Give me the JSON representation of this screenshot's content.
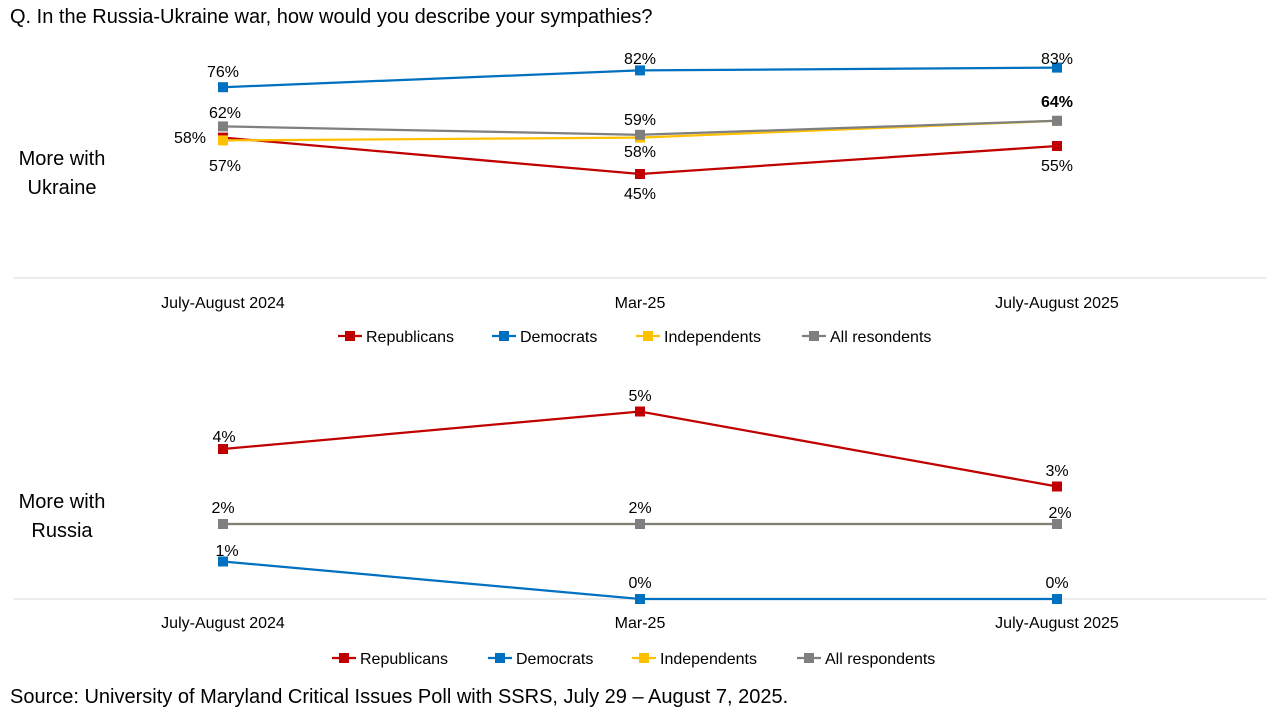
{
  "title": "Q. In the Russia-Ukraine war, how would you describe your sympathies?",
  "source": "Source: University of Maryland Critical Issues Poll with SSRS, July 29 – August 7, 2025.",
  "colors": {
    "Republicans": "#C00000",
    "Democrats": "#0070C0",
    "Independents": "#FFC000",
    "All": "#7F7F7F"
  },
  "chart_data": [
    {
      "type": "line",
      "panel_label": "More with Ukraine",
      "categories": [
        "July-August 2024",
        "Mar-25",
        "July-August 2025"
      ],
      "series": [
        {
          "name": "Republicans",
          "values": [
            58,
            45,
            55
          ],
          "labels": [
            "58%",
            "45%",
            "55%"
          ]
        },
        {
          "name": "Democrats",
          "values": [
            76,
            82,
            83
          ],
          "labels": [
            "76%",
            "82%",
            "83%"
          ]
        },
        {
          "name": "Independents",
          "values": [
            57,
            58,
            64
          ],
          "labels": [
            "57%",
            "58%",
            ""
          ]
        },
        {
          "name": "All resondents",
          "values": [
            62,
            59,
            64
          ],
          "labels": [
            "62%",
            "59%",
            "64%"
          ]
        }
      ],
      "ylim": [
        0,
        100
      ]
    },
    {
      "type": "line",
      "panel_label": "More with Russia",
      "categories": [
        "July-August 2024",
        "Mar-25",
        "July-August 2025"
      ],
      "series": [
        {
          "name": "Republicans",
          "values": [
            4,
            5,
            3
          ],
          "labels": [
            "4%",
            "5%",
            "3%"
          ]
        },
        {
          "name": "Democrats",
          "values": [
            1,
            0,
            0
          ],
          "labels": [
            "1%",
            "0%",
            "0%"
          ]
        },
        {
          "name": "Independents",
          "values": [
            2,
            2,
            2
          ],
          "labels": [
            "",
            "",
            ""
          ]
        },
        {
          "name": "All respondents",
          "values": [
            2,
            2,
            2
          ],
          "labels": [
            "2%",
            "2%",
            "2%"
          ]
        }
      ],
      "ylim": [
        0,
        8
      ]
    }
  ]
}
